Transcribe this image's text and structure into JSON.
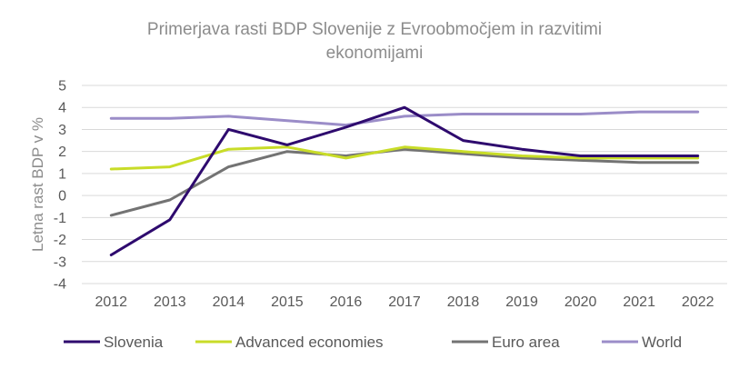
{
  "chart_data": {
    "type": "line",
    "title_lines": [
      "Primerjava rasti BDP Slovenije z Evroobmočjem in razvitimi",
      "ekonomijami"
    ],
    "xlabel": "",
    "ylabel": "Letna rast BDP v %",
    "x": [
      "2012",
      "2013",
      "2014",
      "2015",
      "2016",
      "2017",
      "2018",
      "2019",
      "2020",
      "2021",
      "2022"
    ],
    "ylim": [
      -4,
      5
    ],
    "yticks": [
      "5",
      "4",
      "3",
      "2",
      "1",
      "0",
      "-1",
      "-2",
      "-3",
      "-4"
    ],
    "ytick_values": [
      5,
      4,
      3,
      2,
      1,
      0,
      -1,
      -2,
      -3,
      -4
    ],
    "grid": "horizontal",
    "legend_position": "bottom",
    "series": [
      {
        "name": "Slovenia",
        "color": "#2e0a6e",
        "values": [
          -2.7,
          -1.1,
          3.0,
          2.3,
          3.1,
          4.0,
          2.5,
          2.1,
          1.8,
          1.8,
          1.8
        ]
      },
      {
        "name": "Advanced economies",
        "color": "#c8dc28",
        "values": [
          1.2,
          1.3,
          2.1,
          2.2,
          1.7,
          2.2,
          2.0,
          1.8,
          1.7,
          1.7,
          1.7
        ]
      },
      {
        "name": "Euro area",
        "color": "#737373",
        "values": [
          -0.9,
          -0.2,
          1.3,
          2.0,
          1.8,
          2.1,
          1.9,
          1.7,
          1.6,
          1.5,
          1.5
        ]
      },
      {
        "name": "World",
        "color": "#9b8dc8",
        "values": [
          3.5,
          3.5,
          3.6,
          3.4,
          3.2,
          3.6,
          3.7,
          3.7,
          3.7,
          3.8,
          3.8
        ]
      }
    ]
  }
}
